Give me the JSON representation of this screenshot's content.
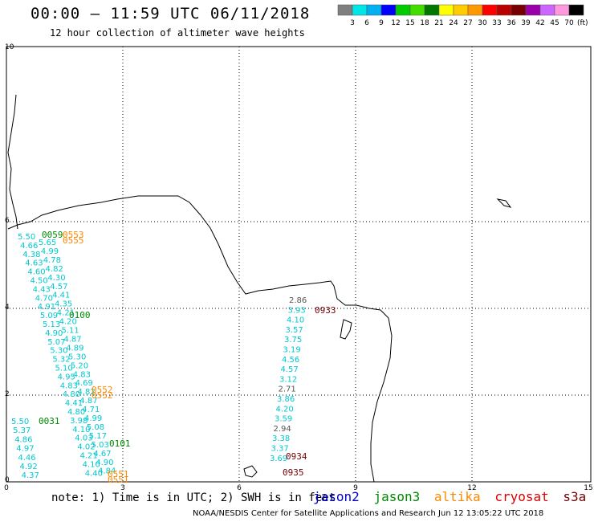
{
  "header": {
    "title": "00:00 – 11:59 UTC 06/11/2018",
    "subtitle": "12 hour collection of altimeter wave heights"
  },
  "colorbar": {
    "colors": [
      "#7f7f7f",
      "#00e5e5",
      "#00b0f0",
      "#0000ff",
      "#00cc00",
      "#44dd00",
      "#007700",
      "#ffff00",
      "#ffcc00",
      "#ff9900",
      "#ff0000",
      "#bb0000",
      "#770000",
      "#9900aa",
      "#cc66ff",
      "#ff99dd",
      "#000000"
    ],
    "labels": [
      "3",
      "6",
      "9",
      "12",
      "15",
      "18",
      "21",
      "24",
      "27",
      "30",
      "33",
      "36",
      "39",
      "42",
      "45",
      "70"
    ],
    "unit": "(ft)"
  },
  "axes": {
    "x_ticks": [
      "0",
      "3",
      "6",
      "9",
      "12",
      "15"
    ],
    "y_ticks": [
      "10",
      "6",
      "4",
      "2",
      "0"
    ]
  },
  "wave_labels": {
    "west_track_a": [
      "5.50",
      "4.66",
      "4.38",
      "4.63",
      "4.60",
      "4.50",
      "4.43",
      "4.70",
      "4.91",
      "5.09",
      "5.13",
      "4.90",
      "5.07",
      "5.30",
      "5.32",
      "5.10",
      "4.95",
      "4.83",
      "4.80",
      "4.41",
      "4.80",
      "3.98",
      "4.10",
      "4.03",
      "4.02",
      "4.21",
      "4.10",
      "4.40"
    ],
    "west_track_b": [
      "5.65",
      "4.99",
      "4.78",
      "4.82",
      "4.30",
      "4.57",
      "4.41",
      "4.35",
      "4.21",
      "4.20",
      "5.11",
      "4.87",
      "4.89",
      "5.30",
      "5.20",
      "4.83",
      "4.69",
      "4.82",
      "4.87",
      "4.71",
      "4.99",
      "5.08",
      "5.17",
      "5.03",
      "4.67",
      "4.90",
      "4.84"
    ],
    "west_track_c": [
      "5.50",
      "5.37",
      "4.86",
      "4.97",
      "4.46",
      "4.92",
      "4.37"
    ],
    "east_track": [
      "2.86",
      "3.93",
      "4.10",
      "3.57",
      "3.75",
      "3.19",
      "4.56",
      "4.57",
      "3.12",
      "2.71",
      "3.86",
      "4.20",
      "3.59",
      "2.94",
      "3.38",
      "3.37",
      "3.69"
    ]
  },
  "pass_labels": {
    "jason3": [
      "0059",
      "0100",
      "0031",
      "0101"
    ],
    "altika": [
      "0553",
      "0555",
      "0552",
      "0552",
      "0551",
      "0551"
    ],
    "cryosat": [
      "0933",
      "0934",
      "0935"
    ]
  },
  "footer": {
    "note": "note: 1) Time is in UTC; 2) SWH is in feet",
    "satellites": [
      {
        "name": "jason2",
        "color": "#0000cc"
      },
      {
        "name": "jason3",
        "color": "#008800"
      },
      {
        "name": "altika",
        "color": "#ff8800"
      },
      {
        "name": "cryosat",
        "color": "#dd0000"
      },
      {
        "name": "s3a",
        "color": "#770000"
      }
    ],
    "credit": "NOAA/NESDIS Center for Satellite Applications and Research     Jun 12 13:05:22 UTC 2018"
  }
}
